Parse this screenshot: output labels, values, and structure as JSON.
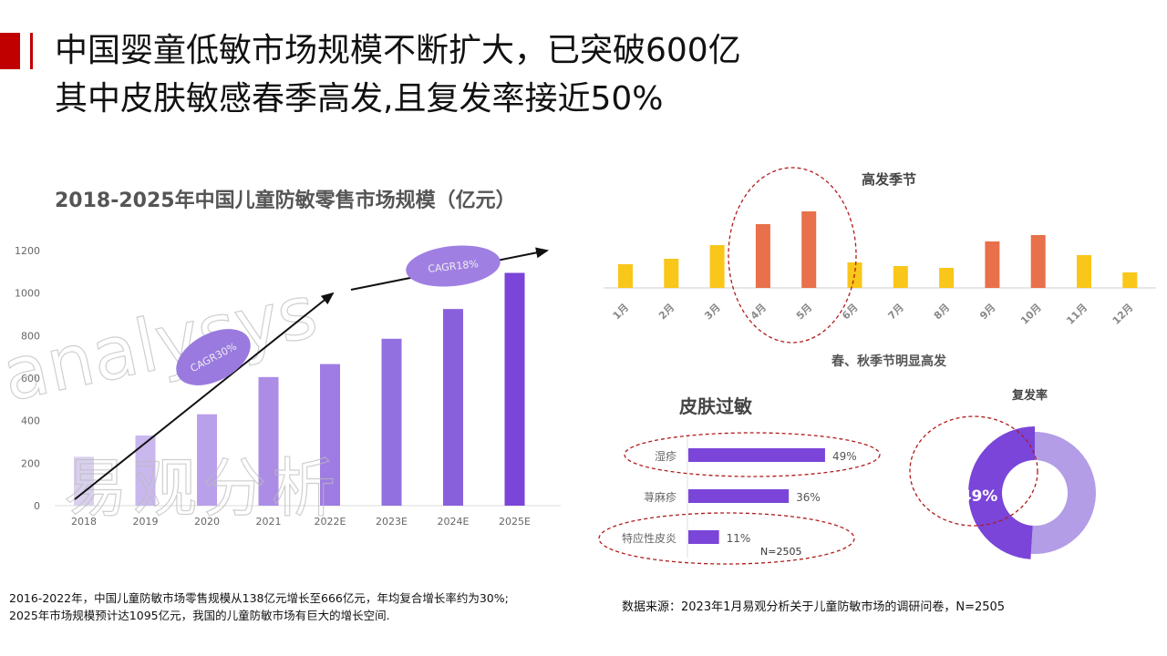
{
  "header": {
    "title_line1": "中国婴童低敏市场规模不断扩大，已突破600亿",
    "title_line2": "其中皮肤敏感春季高发,且复发率接近50%",
    "accent_color": "#c00000"
  },
  "notes": {
    "line1": "2016-2022年，中国儿童防敏市场零售规模从138亿元增长至666亿元，年均复合增长率约为30%;",
    "line2": "2025年市场规模预计达1095亿元，我国的儿童防敏市场有巨大的增长空间."
  },
  "source": "数据来源：2023年1月易观分析关于儿童防敏市场的调研问卷，N=2505",
  "watermark": {
    "text1": "analysys",
    "text2": "易观分析"
  },
  "chart_data": [
    {
      "type": "bar",
      "title": "2018-2025年中国儿童防敏零售市场规模（亿元）",
      "categories": [
        "2018",
        "2019",
        "2020",
        "2021",
        "2022E",
        "2023E",
        "2024E",
        "2025E"
      ],
      "values": [
        230,
        330,
        430,
        605,
        666,
        785,
        925,
        1095
      ],
      "yticks": [
        "0",
        "200",
        "400",
        "600",
        "800",
        "1000",
        "1200"
      ],
      "ylim": [
        0,
        1200
      ],
      "grid": false,
      "annotations": [
        "CAGR30%",
        "CAGR18%"
      ],
      "colors": [
        "#d9d0ee",
        "#c9b8ee",
        "#b9a0ea",
        "#ab8de6",
        "#9e7ce3",
        "#9370df",
        "#8960dc",
        "#7a45d8"
      ]
    },
    {
      "type": "bar",
      "title": "高发季节",
      "subtitle": "春、秋季节明显高发",
      "categories": [
        "1月",
        "2月",
        "3月",
        "4月",
        "5月",
        "6月",
        "7月",
        "8月",
        "9月",
        "10月",
        "11月",
        "12月"
      ],
      "values": [
        26,
        32,
        47,
        70,
        84,
        28,
        24,
        22,
        51,
        58,
        36,
        17
      ],
      "highlight": [
        false,
        false,
        false,
        true,
        true,
        false,
        false,
        false,
        true,
        true,
        false,
        false
      ],
      "colors": {
        "normal": "#f9c61a",
        "high": "#e8704a"
      }
    },
    {
      "type": "bar",
      "orientation": "horizontal",
      "title": "皮肤过敏",
      "categories": [
        "湿疹",
        "荨麻疹",
        "特应性皮炎"
      ],
      "values": [
        49,
        36,
        11
      ],
      "labels": [
        "49%",
        "36%",
        "11%"
      ],
      "note": "N=2505",
      "color": "#7a45d8"
    },
    {
      "type": "pie",
      "title": "复发率",
      "donut": true,
      "values": [
        49,
        51
      ],
      "label": "49%",
      "colors": [
        "#7a45d8",
        "#b39de6"
      ]
    }
  ]
}
